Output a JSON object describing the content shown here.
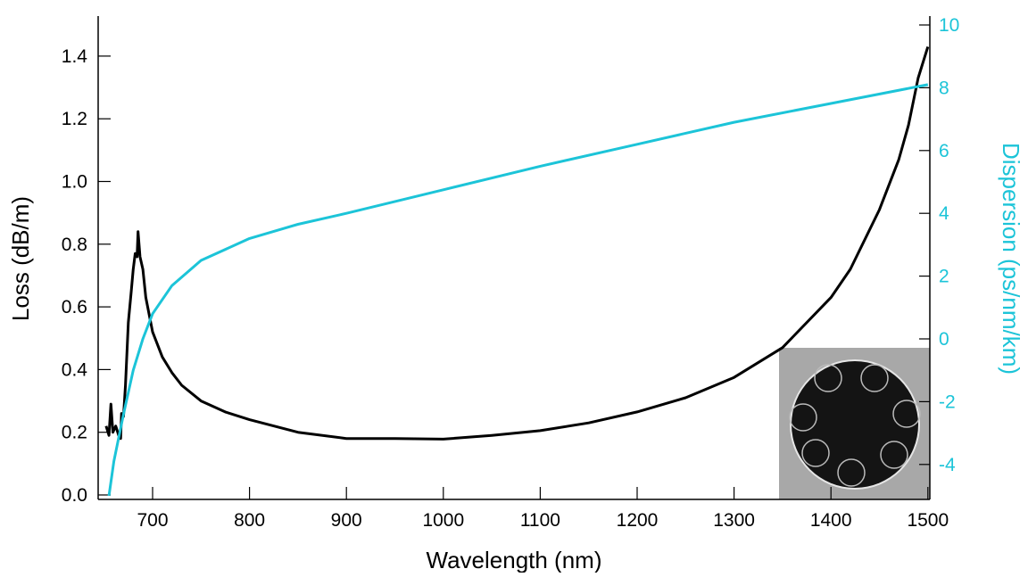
{
  "chart_data": {
    "type": "line",
    "xlabel": "Wavelength (nm)",
    "ylabel": "Loss (dB/m)",
    "y2label": "Dispersion (ps/nm/km)",
    "xlim": [
      650,
      1500
    ],
    "ylim": [
      0,
      1.5
    ],
    "y2lim": [
      -5,
      10
    ],
    "xticks": [
      700,
      800,
      900,
      1000,
      1100,
      1200,
      1300,
      1400,
      1500
    ],
    "yticks": [
      "0.0",
      "0.2",
      "0.4",
      "0.6",
      "0.8",
      "1.0",
      "1.2",
      "1.4"
    ],
    "y2ticks": [
      "-4",
      "-2",
      "0",
      "2",
      "4",
      "6",
      "8",
      "10"
    ],
    "colors": {
      "loss": "#000000",
      "dispersion": "#1cc4d8"
    },
    "series": [
      {
        "name": "Loss",
        "axis": "left",
        "x": [
          652,
          655,
          657,
          659,
          662,
          665,
          667,
          668,
          670,
          672,
          675,
          678,
          680,
          682,
          684,
          685,
          687,
          690,
          693,
          700,
          710,
          720,
          730,
          750,
          775,
          800,
          850,
          900,
          950,
          1000,
          1050,
          1100,
          1150,
          1200,
          1250,
          1300,
          1350,
          1400,
          1420,
          1450,
          1470,
          1480,
          1490,
          1500
        ],
        "y": [
          0.22,
          0.19,
          0.29,
          0.2,
          0.22,
          0.19,
          0.18,
          0.26,
          0.25,
          0.35,
          0.55,
          0.65,
          0.72,
          0.77,
          0.76,
          0.84,
          0.76,
          0.72,
          0.63,
          0.52,
          0.44,
          0.39,
          0.35,
          0.3,
          0.265,
          0.24,
          0.2,
          0.18,
          0.18,
          0.178,
          0.19,
          0.205,
          0.23,
          0.265,
          0.31,
          0.375,
          0.47,
          0.63,
          0.72,
          0.91,
          1.07,
          1.18,
          1.33,
          1.43
        ]
      },
      {
        "name": "Dispersion",
        "axis": "right",
        "x": [
          655,
          660,
          670,
          680,
          690,
          700,
          720,
          750,
          800,
          850,
          900,
          1000,
          1100,
          1200,
          1300,
          1400,
          1500
        ],
        "y": [
          -5,
          -3.9,
          -2.4,
          -1.0,
          0,
          0.8,
          1.7,
          2.5,
          3.2,
          3.65,
          4.0,
          4.75,
          5.5,
          6.2,
          6.9,
          7.5,
          8.1
        ]
      }
    ],
    "inset": "fiber cross-section micrograph"
  }
}
